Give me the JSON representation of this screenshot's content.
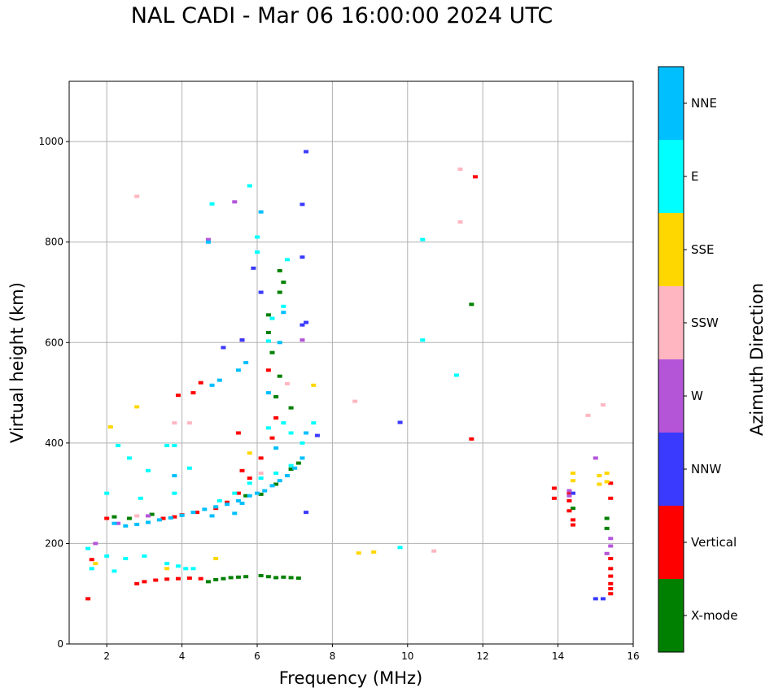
{
  "chart_data": {
    "type": "scatter",
    "title": "NAL CADI - Mar 06 16:00:00 2024 UTC",
    "xlabel": "Frequency (MHz)",
    "ylabel": "Virtual height (km)",
    "xlim": [
      1,
      16
    ],
    "ylim": [
      0,
      1120
    ],
    "xticks": [
      2,
      4,
      6,
      8,
      10,
      12,
      14,
      16
    ],
    "yticks": [
      0,
      200,
      400,
      600,
      800,
      1000
    ],
    "grid": true,
    "colorbar": {
      "label": "Azimuth Direction",
      "categories": [
        {
          "name": "X-mode",
          "color": "#008000"
        },
        {
          "name": "Vertical",
          "color": "#ff0000"
        },
        {
          "name": "NNW",
          "color": "#3a3aff"
        },
        {
          "name": "W",
          "color": "#b455d8"
        },
        {
          "name": "SSW",
          "color": "#ffb6c1"
        },
        {
          "name": "SSE",
          "color": "#ffd700"
        },
        {
          "name": "E",
          "color": "#00ffff"
        },
        {
          "name": "NNE",
          "color": "#00bfff"
        }
      ]
    },
    "series": [
      {
        "name": "X-mode",
        "points": [
          [
            4.7,
            124
          ],
          [
            4.9,
            128
          ],
          [
            5.1,
            130
          ],
          [
            5.3,
            132
          ],
          [
            5.5,
            133
          ],
          [
            5.7,
            134
          ],
          [
            6.1,
            136
          ],
          [
            6.3,
            134
          ],
          [
            6.5,
            132
          ],
          [
            6.7,
            133
          ],
          [
            6.9,
            132
          ],
          [
            7.1,
            131
          ],
          [
            5.7,
            295
          ],
          [
            6.1,
            298
          ],
          [
            6.5,
            318
          ],
          [
            6.9,
            348
          ],
          [
            7.1,
            360
          ],
          [
            6.5,
            492
          ],
          [
            6.6,
            700
          ],
          [
            6.7,
            720
          ],
          [
            6.6,
            743
          ],
          [
            6.3,
            655
          ],
          [
            6.3,
            620
          ],
          [
            6.4,
            580
          ],
          [
            6.6,
            533
          ],
          [
            6.9,
            470
          ],
          [
            11.7,
            676
          ],
          [
            15.3,
            250
          ],
          [
            15.3,
            230
          ],
          [
            14.4,
            270
          ],
          [
            2.2,
            253
          ],
          [
            2.6,
            250
          ],
          [
            3.2,
            258
          ]
        ]
      },
      {
        "name": "Vertical",
        "points": [
          [
            2.8,
            120
          ],
          [
            3.0,
            124
          ],
          [
            3.3,
            127
          ],
          [
            3.6,
            129
          ],
          [
            3.9,
            130
          ],
          [
            4.2,
            131
          ],
          [
            4.5,
            130
          ],
          [
            3.5,
            250
          ],
          [
            3.8,
            253
          ],
          [
            4.0,
            257
          ],
          [
            4.4,
            262
          ],
          [
            4.9,
            270
          ],
          [
            5.2,
            282
          ],
          [
            5.5,
            300
          ],
          [
            5.8,
            330
          ],
          [
            6.1,
            370
          ],
          [
            6.4,
            410
          ],
          [
            6.5,
            450
          ],
          [
            6.3,
            545
          ],
          [
            3.9,
            495
          ],
          [
            4.3,
            500
          ],
          [
            4.5,
            520
          ],
          [
            5.6,
            605
          ],
          [
            5.5,
            420
          ],
          [
            5.6,
            345
          ],
          [
            2.0,
            250
          ],
          [
            1.6,
            168
          ],
          [
            1.5,
            90
          ],
          [
            11.8,
            930
          ],
          [
            11.7,
            408
          ],
          [
            14.3,
            300
          ],
          [
            14.3,
            285
          ],
          [
            14.3,
            265
          ],
          [
            14.4,
            247
          ],
          [
            14.4,
            237
          ],
          [
            15.4,
            320
          ],
          [
            15.4,
            290
          ],
          [
            15.4,
            170
          ],
          [
            15.4,
            150
          ],
          [
            15.4,
            135
          ],
          [
            15.4,
            120
          ],
          [
            15.4,
            110
          ],
          [
            15.4,
            100
          ],
          [
            13.9,
            310
          ],
          [
            13.9,
            290
          ]
        ]
      },
      {
        "name": "NNW",
        "points": [
          [
            7.3,
            980
          ],
          [
            7.2,
            875
          ],
          [
            7.2,
            770
          ],
          [
            5.9,
            748
          ],
          [
            6.1,
            700
          ],
          [
            5.6,
            605
          ],
          [
            5.1,
            590
          ],
          [
            7.2,
            635
          ],
          [
            7.3,
            640
          ],
          [
            7.6,
            415
          ],
          [
            9.8,
            441
          ],
          [
            7.3,
            262
          ],
          [
            15.0,
            90
          ],
          [
            15.2,
            90
          ],
          [
            14.4,
            300
          ]
        ]
      },
      {
        "name": "W",
        "points": [
          [
            5.4,
            880
          ],
          [
            4.7,
            805
          ],
          [
            7.2,
            605
          ],
          [
            15.0,
            370
          ],
          [
            15.4,
            210
          ],
          [
            15.4,
            195
          ],
          [
            15.3,
            180
          ],
          [
            1.7,
            200
          ],
          [
            2.3,
            240
          ],
          [
            3.1,
            255
          ],
          [
            14.3,
            305
          ],
          [
            14.3,
            295
          ]
        ]
      },
      {
        "name": "SSW",
        "points": [
          [
            2.8,
            891
          ],
          [
            11.4,
            945
          ],
          [
            11.4,
            840
          ],
          [
            8.6,
            483
          ],
          [
            14.8,
            455
          ],
          [
            15.2,
            476
          ],
          [
            10.7,
            185
          ],
          [
            6.8,
            518
          ],
          [
            6.1,
            340
          ],
          [
            3.8,
            440
          ],
          [
            4.2,
            440
          ],
          [
            2.8,
            255
          ]
        ]
      },
      {
        "name": "SSE",
        "points": [
          [
            2.1,
            432
          ],
          [
            2.8,
            472
          ],
          [
            7.5,
            515
          ],
          [
            8.7,
            181
          ],
          [
            9.1,
            183
          ],
          [
            4.9,
            170
          ],
          [
            14.4,
            340
          ],
          [
            14.4,
            325
          ],
          [
            15.1,
            335
          ],
          [
            15.1,
            318
          ],
          [
            15.3,
            323
          ],
          [
            15.3,
            340
          ],
          [
            5.8,
            380
          ],
          [
            3.6,
            150
          ],
          [
            1.7,
            160
          ]
        ]
      },
      {
        "name": "E",
        "points": [
          [
            5.8,
            912
          ],
          [
            4.8,
            876
          ],
          [
            6.0,
            810
          ],
          [
            6.0,
            780
          ],
          [
            6.8,
            765
          ],
          [
            10.4,
            805
          ],
          [
            10.4,
            605
          ],
          [
            11.3,
            535
          ],
          [
            9.8,
            192
          ],
          [
            6.4,
            648
          ],
          [
            6.7,
            672
          ],
          [
            6.3,
            603
          ],
          [
            2.3,
            395
          ],
          [
            2.6,
            370
          ],
          [
            3.1,
            345
          ],
          [
            3.6,
            395
          ],
          [
            3.8,
            395
          ],
          [
            4.2,
            350
          ],
          [
            1.5,
            190
          ],
          [
            2.0,
            175
          ],
          [
            2.5,
            170
          ],
          [
            3.0,
            175
          ],
          [
            3.6,
            160
          ],
          [
            3.9,
            155
          ],
          [
            4.1,
            150
          ],
          [
            4.3,
            150
          ],
          [
            5.0,
            285
          ],
          [
            5.4,
            300
          ],
          [
            5.8,
            320
          ],
          [
            6.1,
            330
          ],
          [
            6.5,
            340
          ],
          [
            6.9,
            355
          ],
          [
            7.2,
            400
          ],
          [
            7.5,
            440
          ],
          [
            6.9,
            420
          ],
          [
            6.7,
            440
          ],
          [
            6.3,
            430
          ],
          [
            1.6,
            150
          ],
          [
            2.2,
            145
          ],
          [
            3.8,
            300
          ],
          [
            2.0,
            300
          ],
          [
            2.9,
            290
          ]
        ]
      },
      {
        "name": "NNE",
        "points": [
          [
            2.2,
            240
          ],
          [
            2.5,
            235
          ],
          [
            2.8,
            238
          ],
          [
            3.1,
            242
          ],
          [
            3.4,
            247
          ],
          [
            3.7,
            251
          ],
          [
            4.0,
            256
          ],
          [
            4.3,
            262
          ],
          [
            4.6,
            268
          ],
          [
            4.9,
            273
          ],
          [
            5.2,
            278
          ],
          [
            5.5,
            285
          ],
          [
            5.8,
            295
          ],
          [
            6.0,
            300
          ],
          [
            6.2,
            305
          ],
          [
            6.4,
            315
          ],
          [
            6.6,
            325
          ],
          [
            6.8,
            335
          ],
          [
            7.0,
            350
          ],
          [
            7.2,
            370
          ],
          [
            6.1,
            860
          ],
          [
            4.7,
            800
          ],
          [
            5.5,
            545
          ],
          [
            5.7,
            560
          ],
          [
            4.8,
            515
          ],
          [
            5.0,
            525
          ],
          [
            3.8,
            335
          ],
          [
            6.3,
            500
          ],
          [
            6.6,
            600
          ],
          [
            6.7,
            660
          ],
          [
            7.3,
            420
          ],
          [
            6.5,
            390
          ],
          [
            5.4,
            260
          ],
          [
            5.6,
            280
          ],
          [
            4.8,
            255
          ]
        ]
      }
    ]
  }
}
